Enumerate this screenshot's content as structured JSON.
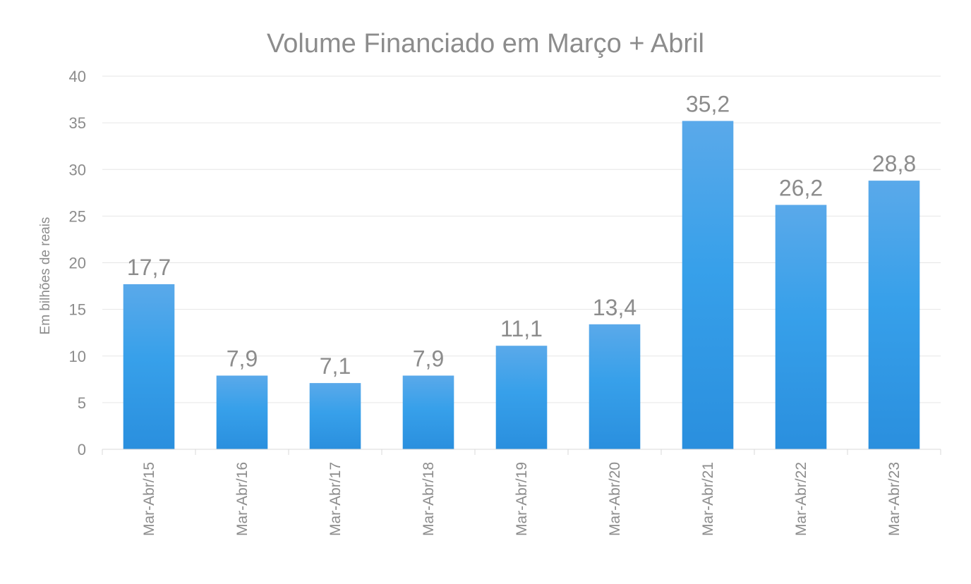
{
  "chart_data": {
    "type": "bar",
    "title": "Volume Financiado em Março + Abril",
    "ylabel": "Em bilhões de reais",
    "xlabel": "",
    "categories": [
      "Mar-Abr/15",
      "Mar-Abr/16",
      "Mar-Abr/17",
      "Mar-Abr/18",
      "Mar-Abr/19",
      "Mar-Abr/20",
      "Mar-Abr/21",
      "Mar-Abr/22",
      "Mar-Abr/23"
    ],
    "values": [
      17.7,
      7.9,
      7.1,
      7.9,
      11.1,
      13.4,
      35.2,
      26.2,
      28.8
    ],
    "data_labels": [
      "17,7",
      "7,9",
      "7,1",
      "7,9",
      "11,1",
      "13,4",
      "35,2",
      "26,2",
      "28,8"
    ],
    "ylim": [
      0,
      40
    ],
    "yticks": [
      0,
      5,
      10,
      15,
      20,
      25,
      30,
      35,
      40
    ],
    "grid": true,
    "legend": "none",
    "colors": {
      "bar_top": "#5aa9ea",
      "bar_mid": "#37a0ea",
      "bar_bottom": "#2a8fde",
      "grid": "#e6e6e6",
      "axis": "#d9d9d9",
      "text": "#8c8c8c"
    }
  }
}
